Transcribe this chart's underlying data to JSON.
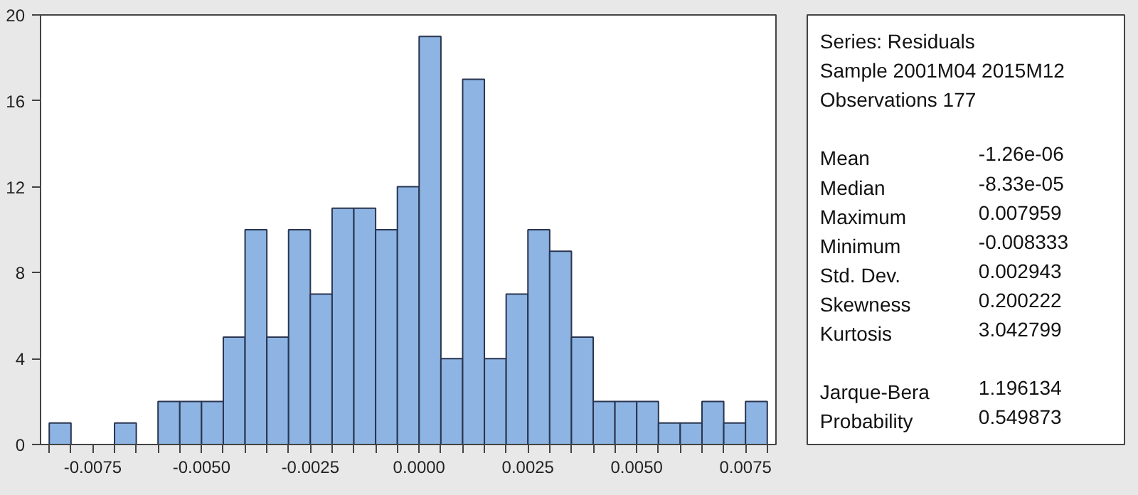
{
  "chart_data": {
    "type": "histogram",
    "bins": [
      -0.0085,
      -0.008,
      -0.0075,
      -0.007,
      -0.0065,
      -0.006,
      -0.0055,
      -0.005,
      -0.0045,
      -0.004,
      -0.0035,
      -0.003,
      -0.0025,
      -0.002,
      -0.0015,
      -0.001,
      -0.0005,
      0.0,
      0.0005,
      0.001,
      0.0015,
      0.002,
      0.0025,
      0.003,
      0.0035,
      0.004,
      0.0045,
      0.005,
      0.0055,
      0.006,
      0.0065,
      0.007,
      0.0075,
      0.008
    ],
    "values": [
      1,
      0,
      0,
      1,
      0,
      2,
      2,
      2,
      5,
      10,
      5,
      10,
      7,
      11,
      11,
      10,
      12,
      19,
      4,
      17,
      4,
      7,
      10,
      9,
      5,
      2,
      2,
      2,
      1,
      1,
      2,
      1,
      2
    ],
    "color": "#8db4e2",
    "xlim": [
      -0.0087,
      0.0082
    ],
    "ylim": [
      0,
      20
    ],
    "xticks": [
      {
        "value": -0.0075,
        "label": "-0.0075"
      },
      {
        "value": -0.005,
        "label": "-0.0050"
      },
      {
        "value": -0.0025,
        "label": "-0.0025"
      },
      {
        "value": 0.0,
        "label": "0.0000"
      },
      {
        "value": 0.0025,
        "label": "0.0025"
      },
      {
        "value": 0.005,
        "label": "0.0050"
      },
      {
        "value": 0.0075,
        "label": "0.0075"
      }
    ],
    "yticks": [
      0,
      4,
      8,
      12,
      16,
      20
    ],
    "grid": false,
    "legend": false,
    "annotations": [
      "Series: Residuals",
      "Sample 2001M04 2015M12",
      "Observations 177",
      "Mean -1.26e-06",
      "Median -8.33e-05",
      "Maximum 0.007959",
      "Minimum -0.008333",
      "Std. Dev. 0.002943",
      "Skewness 0.200222",
      "Kurtosis 3.042799",
      "Jarque-Bera 1.196134",
      "Probability 0.549873"
    ]
  }
}
